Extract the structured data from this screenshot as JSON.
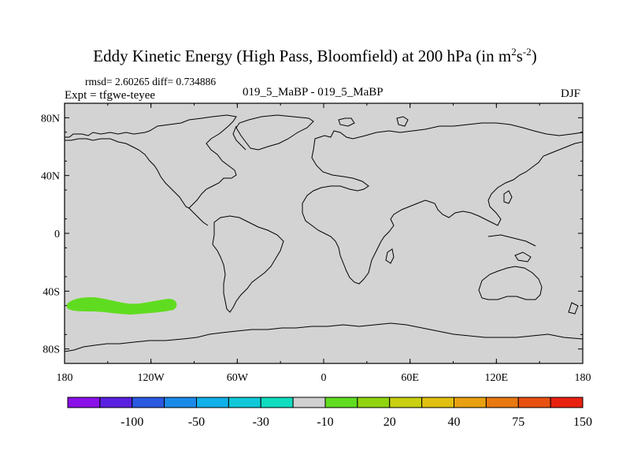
{
  "plot": {
    "title_main": "Eddy Kinetic Energy (High Pass, Bloomfield) at 200 hPa (in m",
    "title_sup1": "2",
    "title_mid": "s",
    "title_sup2": "-2",
    "title_end": ")",
    "stats": "rmsd= 2.60265 diff= 0.734886",
    "expt": "Expt = tfgwe-teyee",
    "center_label": "019_5_MaBP - 019_5_MaBP",
    "season": "DJF"
  },
  "axes": {
    "lat_ticks": [
      "80N",
      "40N",
      "0",
      "40S",
      "80S"
    ],
    "lat_values": [
      80,
      40,
      0,
      -40,
      -80
    ],
    "lon_ticks": [
      "180",
      "120W",
      "60W",
      "0",
      "60E",
      "120E",
      "180"
    ],
    "lon_values": [
      -180,
      -120,
      -60,
      0,
      60,
      120,
      180
    ],
    "lat_range": [
      -90,
      90
    ],
    "lon_range": [
      -180,
      180
    ]
  },
  "colorbar": {
    "colors": [
      "#8a10e8",
      "#5a20e0",
      "#2a58e0",
      "#1a8ae8",
      "#10b0e8",
      "#10c8d8",
      "#10dcc0",
      "#d0d0d0",
      "#60dc20",
      "#90d410",
      "#c8d010",
      "#e0c010",
      "#e8a010",
      "#e87810",
      "#e85010",
      "#e82010"
    ],
    "labels": [
      "-100",
      "-50",
      "-30",
      "-10",
      "20",
      "40",
      "75",
      "150"
    ]
  },
  "chart_data": {
    "type": "heatmap",
    "title": "Eddy Kinetic Energy (High Pass, Bloomfield) at 200 hPa (in m2s-2)",
    "background_value_class": "near zero (-10 to 20)",
    "anomaly_regions": [
      {
        "description": "positive band",
        "value_class": "20",
        "color": "#60dc20",
        "lon_range": [
          -173,
          -120
        ],
        "lat_range": [
          -53,
          -47
        ]
      }
    ]
  }
}
